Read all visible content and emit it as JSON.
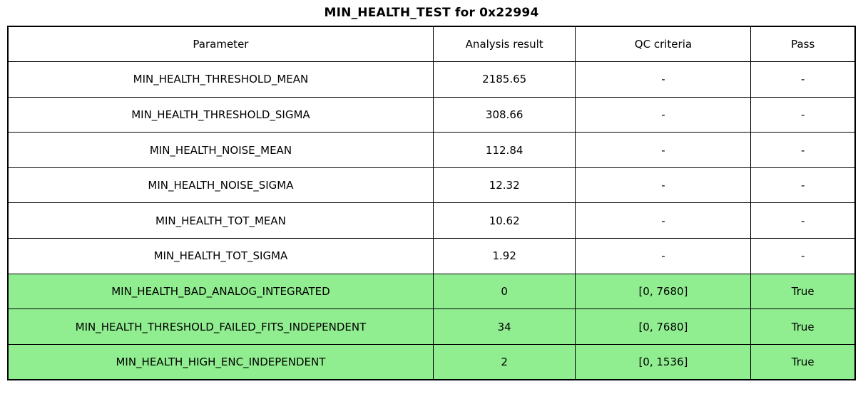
{
  "chart_data": {
    "type": "table",
    "title": "MIN_HEALTH_TEST for 0x22994",
    "columns": [
      "Parameter",
      "Analysis result",
      "QC criteria",
      "Pass"
    ],
    "rows": [
      {
        "parameter": "MIN_HEALTH_THRESHOLD_MEAN",
        "analysis_result": "2185.65",
        "qc_criteria": "-",
        "pass": "-",
        "highlighted": false
      },
      {
        "parameter": "MIN_HEALTH_THRESHOLD_SIGMA",
        "analysis_result": "308.66",
        "qc_criteria": "-",
        "pass": "-",
        "highlighted": false
      },
      {
        "parameter": "MIN_HEALTH_NOISE_MEAN",
        "analysis_result": "112.84",
        "qc_criteria": "-",
        "pass": "-",
        "highlighted": false
      },
      {
        "parameter": "MIN_HEALTH_NOISE_SIGMA",
        "analysis_result": "12.32",
        "qc_criteria": "-",
        "pass": "-",
        "highlighted": false
      },
      {
        "parameter": "MIN_HEALTH_TOT_MEAN",
        "analysis_result": "10.62",
        "qc_criteria": "-",
        "pass": "-",
        "highlighted": false
      },
      {
        "parameter": "MIN_HEALTH_TOT_SIGMA",
        "analysis_result": "1.92",
        "qc_criteria": "-",
        "pass": "-",
        "highlighted": false
      },
      {
        "parameter": "MIN_HEALTH_BAD_ANALOG_INTEGRATED",
        "analysis_result": "0",
        "qc_criteria": "[0, 7680]",
        "pass": "True",
        "highlighted": true
      },
      {
        "parameter": "MIN_HEALTH_THRESHOLD_FAILED_FITS_INDEPENDENT",
        "analysis_result": "34",
        "qc_criteria": "[0, 7680]",
        "pass": "True",
        "highlighted": true
      },
      {
        "parameter": "MIN_HEALTH_HIGH_ENC_INDEPENDENT",
        "analysis_result": "2",
        "qc_criteria": "[0, 1536]",
        "pass": "True",
        "highlighted": true
      }
    ],
    "layout": {
      "grid": "full-table-borders",
      "legend": "none",
      "highlight_meaning": "QC test passed"
    }
  },
  "colors": {
    "highlight_green": "#90EE90",
    "border": "#000000",
    "background": "#FFFFFF",
    "text": "#000000"
  }
}
